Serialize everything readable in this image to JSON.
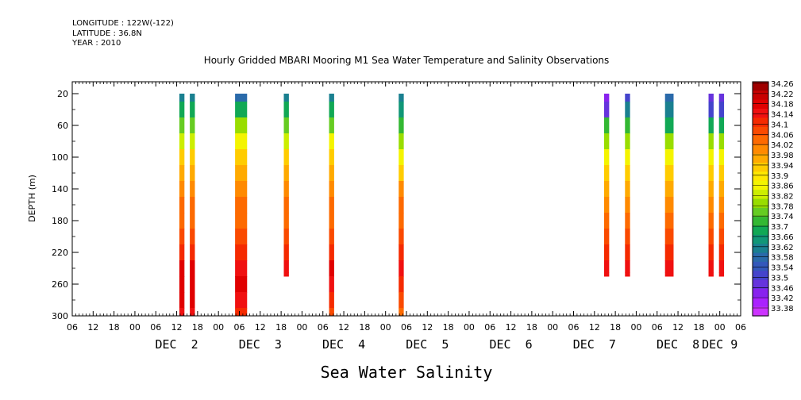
{
  "header": {
    "longitude": "LONGITUDE : 122W(-122)",
    "latitude": "LATITUDE : 36.8N",
    "year": "YEAR : 2010",
    "title": "Hourly Gridded MBARI Mooring M1 Sea Water Temperature and Salinity Observations"
  },
  "footer": {
    "variable_title": "Sea Water Salinity"
  },
  "chart_data": {
    "type": "heatmap",
    "title": "Hourly Gridded MBARI Mooring M1 Sea Water Temperature and Salinity Observations",
    "xlabel": "",
    "ylabel": "DEPTH (m)",
    "x_unit": "hours since DEC 1 2010 00:00",
    "xlim": [
      6,
      198
    ],
    "ylim": [
      300,
      5
    ],
    "y_inverted": true,
    "x_tick_labels": [
      "06",
      "12",
      "18",
      "00",
      "06",
      "12",
      "18",
      "00",
      "06",
      "12",
      "18",
      "00",
      "06",
      "12",
      "18",
      "00",
      "06",
      "12",
      "18",
      "00",
      "06",
      "12",
      "18",
      "00",
      "06",
      "12",
      "18",
      "00",
      "06",
      "12",
      "18",
      "00",
      "06"
    ],
    "x_day_labels": [
      {
        "label": "DEC  2",
        "hour": 36
      },
      {
        "label": "DEC  3",
        "hour": 60
      },
      {
        "label": "DEC  4",
        "hour": 84
      },
      {
        "label": "DEC  5",
        "hour": 108
      },
      {
        "label": "DEC  6",
        "hour": 132
      },
      {
        "label": "DEC  7",
        "hour": 156
      },
      {
        "label": "DEC  8",
        "hour": 180
      },
      {
        "label": "DEC 9",
        "hour": 192
      }
    ],
    "y_ticks": [
      20,
      60,
      100,
      140,
      180,
      220,
      260,
      300
    ],
    "colorbar_levels": [
      "34.26",
      "34.22",
      "34.18",
      "34.14",
      "34.1",
      "34.06",
      "34.02",
      "33.98",
      "33.94",
      "33.9",
      "33.86",
      "33.82",
      "33.78",
      "33.74",
      "33.7",
      "33.66",
      "33.62",
      "33.58",
      "33.54",
      "33.5",
      "33.46",
      "33.42",
      "33.38"
    ],
    "colorbar_range": [
      33.38,
      34.28
    ],
    "colors_high_to_low": [
      "#a00000",
      "#c80000",
      "#e00000",
      "#f01010",
      "#f52a00",
      "#fa4a00",
      "#fd6a00",
      "#ff8a00",
      "#ffaa00",
      "#ffcc00",
      "#ffe800",
      "#f4f400",
      "#ccee00",
      "#99dd00",
      "#66cc22",
      "#33b833",
      "#11a855",
      "#119777",
      "#1a8090",
      "#2a6aaa",
      "#3358bb",
      "#4444cc",
      "#6633dd",
      "#8822ee",
      "#aa22ff",
      "#cc33ff"
    ],
    "columns": [
      {
        "x_hour": 37.5,
        "width_hours": 1,
        "depths": [
          20,
          40,
          60,
          80,
          100,
          120,
          140,
          160,
          180,
          200,
          220,
          240,
          260,
          280,
          300
        ],
        "values": [
          33.62,
          33.7,
          33.78,
          33.86,
          33.94,
          33.98,
          34.02,
          34.06,
          34.06,
          34.1,
          34.14,
          34.2,
          34.22,
          34.2,
          34.18
        ]
      },
      {
        "x_hour": 40.5,
        "width_hours": 1,
        "depths": [
          20,
          40,
          60,
          80,
          100,
          120,
          140,
          160,
          180,
          200,
          220,
          240,
          260,
          280,
          300
        ],
        "values": [
          33.62,
          33.7,
          33.78,
          33.86,
          33.94,
          33.98,
          34.02,
          34.06,
          34.06,
          34.1,
          34.14,
          34.2,
          34.22,
          34.2,
          34.18
        ]
      },
      {
        "x_hour": 54.5,
        "width_hours": 3,
        "depths": [
          20,
          40,
          60,
          80,
          100,
          120,
          140,
          160,
          180,
          200,
          220,
          240,
          260,
          280,
          300
        ],
        "values": [
          33.58,
          33.7,
          33.8,
          33.88,
          33.94,
          33.98,
          34.02,
          34.06,
          34.08,
          34.1,
          34.14,
          34.18,
          34.22,
          34.18,
          34.14
        ]
      },
      {
        "x_hour": 67.5,
        "width_hours": 1,
        "depths": [
          20,
          40,
          60,
          80,
          100,
          120,
          140,
          160,
          180,
          200,
          220,
          240,
          250
        ],
        "values": [
          33.62,
          33.7,
          33.78,
          33.86,
          33.94,
          33.98,
          34.02,
          34.06,
          34.06,
          34.1,
          34.14,
          34.18,
          34.18
        ]
      },
      {
        "x_hour": 80.5,
        "width_hours": 1,
        "depths": [
          20,
          40,
          60,
          80,
          100,
          120,
          140,
          160,
          180,
          200,
          220,
          240,
          260,
          280,
          300
        ],
        "values": [
          33.62,
          33.7,
          33.78,
          33.88,
          33.94,
          33.98,
          34.02,
          34.06,
          34.06,
          34.1,
          34.14,
          34.2,
          34.18,
          34.14,
          34.1
        ]
      },
      {
        "x_hour": 100.5,
        "width_hours": 1,
        "depths": [
          20,
          40,
          60,
          80,
          100,
          120,
          140,
          160,
          180,
          200,
          220,
          240,
          260,
          280,
          300
        ],
        "values": [
          33.62,
          33.66,
          33.74,
          33.82,
          33.9,
          33.96,
          34.02,
          34.06,
          34.06,
          34.1,
          34.14,
          34.18,
          34.14,
          34.1,
          34.06
        ]
      },
      {
        "x_hour": 159.5,
        "width_hours": 1,
        "depths": [
          20,
          40,
          60,
          80,
          100,
          120,
          140,
          160,
          180,
          200,
          220,
          240,
          250
        ],
        "values": [
          33.46,
          33.5,
          33.74,
          33.82,
          33.9,
          33.94,
          33.98,
          34.02,
          34.06,
          34.1,
          34.14,
          34.18,
          34.18
        ]
      },
      {
        "x_hour": 165.5,
        "width_hours": 1,
        "depths": [
          20,
          40,
          60,
          80,
          100,
          120,
          140,
          160,
          180,
          200,
          220,
          240,
          250
        ],
        "values": [
          33.54,
          33.62,
          33.74,
          33.82,
          33.9,
          33.94,
          33.98,
          34.02,
          34.06,
          34.1,
          34.14,
          34.18,
          34.18
        ]
      },
      {
        "x_hour": 177.5,
        "width_hours": 2,
        "depths": [
          20,
          40,
          60,
          80,
          100,
          120,
          140,
          160,
          180,
          200,
          220,
          240,
          250
        ],
        "values": [
          33.58,
          33.62,
          33.7,
          33.8,
          33.88,
          33.94,
          33.98,
          34.02,
          34.06,
          34.1,
          34.14,
          34.18,
          34.18
        ]
      },
      {
        "x_hour": 189.5,
        "width_hours": 1,
        "depths": [
          20,
          40,
          60,
          80,
          100,
          120,
          140,
          160,
          180,
          200,
          220,
          240,
          250
        ],
        "values": [
          33.5,
          33.54,
          33.7,
          33.8,
          33.9,
          33.94,
          33.98,
          34.02,
          34.06,
          34.1,
          34.14,
          34.18,
          34.18
        ]
      },
      {
        "x_hour": 192.5,
        "width_hours": 1,
        "depths": [
          20,
          40,
          60,
          80,
          100,
          120,
          140,
          160,
          180,
          200,
          220,
          240,
          250
        ],
        "values": [
          33.5,
          33.54,
          33.7,
          33.8,
          33.9,
          33.94,
          33.98,
          34.02,
          34.06,
          34.1,
          34.14,
          34.18,
          34.18
        ]
      }
    ]
  }
}
